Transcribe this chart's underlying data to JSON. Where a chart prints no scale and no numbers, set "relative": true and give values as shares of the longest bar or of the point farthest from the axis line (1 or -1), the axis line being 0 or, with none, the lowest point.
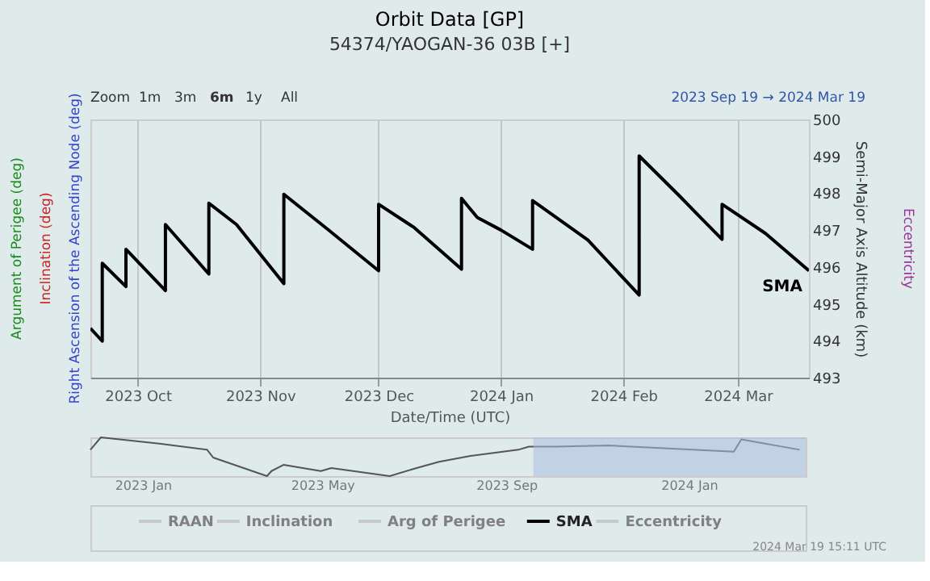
{
  "chart_data": [
    {
      "type": "line",
      "title": "Orbit Data [GP]",
      "subtitle": "54374/YAOGAN-36 03B [+]",
      "xlabel": "Date/Time (UTC)",
      "ylabel": "Right Ascension of the Ascending Node (deg)",
      "y2label": "Semi-Major Axis Altitude (km)",
      "annotations": [
        "Argument of Perigee (deg)",
        "Inclination (deg)",
        "Eccentricity",
        "Zoom",
        "1m",
        "3m",
        "6m",
        "1y",
        "All",
        "2023 Sep 19 → 2024 Mar 19",
        "2024 Mar 19 15:11 UTC"
      ],
      "xlim": [
        "2023-09-19",
        "2024-03-19"
      ],
      "xticks": [
        {
          "value": "2023-10-01",
          "label": "2023 Oct"
        },
        {
          "value": "2023-11-01",
          "label": "2023 Nov"
        },
        {
          "value": "2023-12-01",
          "label": "2023 Dec"
        },
        {
          "value": "2024-01-01",
          "label": "2024 Jan"
        },
        {
          "value": "2024-02-01",
          "label": "2024 Feb"
        },
        {
          "value": "2024-03-01",
          "label": "2024 Mar"
        }
      ],
      "y2lim": [
        493,
        500
      ],
      "y2ticks": [
        493,
        494,
        495,
        496,
        497,
        498,
        499,
        500
      ],
      "grid": "x",
      "legend": "bottom",
      "series": [
        {
          "name": "RAAN",
          "color": "#c8c8c8"
        },
        {
          "name": "Inclination",
          "color": "#c8c8c8"
        },
        {
          "name": "Arg of Perigee",
          "color": "#c8c8c8"
        },
        {
          "name": "SMA",
          "color": "#000000",
          "axis": "y2",
          "x": [
            "2023-09-19",
            "2023-09-22",
            "2023-09-22",
            "2023-09-28",
            "2023-09-28",
            "2023-10-08",
            "2023-10-08",
            "2023-10-19",
            "2023-10-19",
            "2023-10-26",
            "2023-11-07",
            "2023-11-07",
            "2023-11-18",
            "2023-12-01",
            "2023-12-01",
            "2023-12-10",
            "2023-12-22",
            "2023-12-22",
            "2023-12-26",
            "2024-01-01",
            "2024-01-09",
            "2024-01-09",
            "2024-01-23",
            "2024-02-05",
            "2024-02-05",
            "2024-02-15",
            "2024-02-20",
            "2024-02-26",
            "2024-02-26",
            "2024-03-08",
            "2024-03-19"
          ],
          "values": [
            494.34,
            493.99,
            496.1,
            495.47,
            496.48,
            495.36,
            497.15,
            495.81,
            497.73,
            497.15,
            495.55,
            497.97,
            497.03,
            495.9,
            497.7,
            497.07,
            495.94,
            497.86,
            497.34,
            497.0,
            496.48,
            497.8,
            496.73,
            495.24,
            499.01,
            497.95,
            497.4,
            496.75,
            497.7,
            496.91,
            495.9
          ]
        },
        {
          "name": "Eccentricity",
          "color": "#c8c8c8"
        }
      ]
    },
    {
      "type": "line",
      "relative": true,
      "xlim": [
        "2022-11-27",
        "2024-03-19"
      ],
      "xticks": [
        {
          "value": "2023-01-01",
          "label": "2023 Jan"
        },
        {
          "value": "2023-05-01",
          "label": "2023 May"
        },
        {
          "value": "2023-09-01",
          "label": "2023 Sep"
        },
        {
          "value": "2024-01-01",
          "label": "2024 Jan"
        }
      ],
      "bands": [
        {
          "axis": "x",
          "from": "2023-09-19",
          "to": "2024-03-19",
          "color": "#a9bcdc"
        }
      ],
      "series": [
        {
          "color": "#555555",
          "x": [
            "2022-11-27",
            "2022-12-04",
            "2023-01-12",
            "2023-02-13",
            "2023-02-17",
            "2023-03-25",
            "2023-03-28",
            "2023-04-05",
            "2023-04-30",
            "2023-05-07",
            "2023-06-15",
            "2023-07-03",
            "2023-07-18",
            "2023-08-08",
            "2023-09-09",
            "2023-09-16",
            "2023-10-04",
            "2023-11-09",
            "2024-01-31",
            "2024-02-05",
            "2024-03-15"
          ],
          "values": [
            0.68,
            1.0,
            0.84,
            0.68,
            0.48,
            0.0,
            0.13,
            0.29,
            0.13,
            0.21,
            0.0,
            0.21,
            0.37,
            0.52,
            0.68,
            0.76,
            0.76,
            0.79,
            0.63,
            0.95,
            0.68
          ]
        }
      ]
    }
  ]
}
